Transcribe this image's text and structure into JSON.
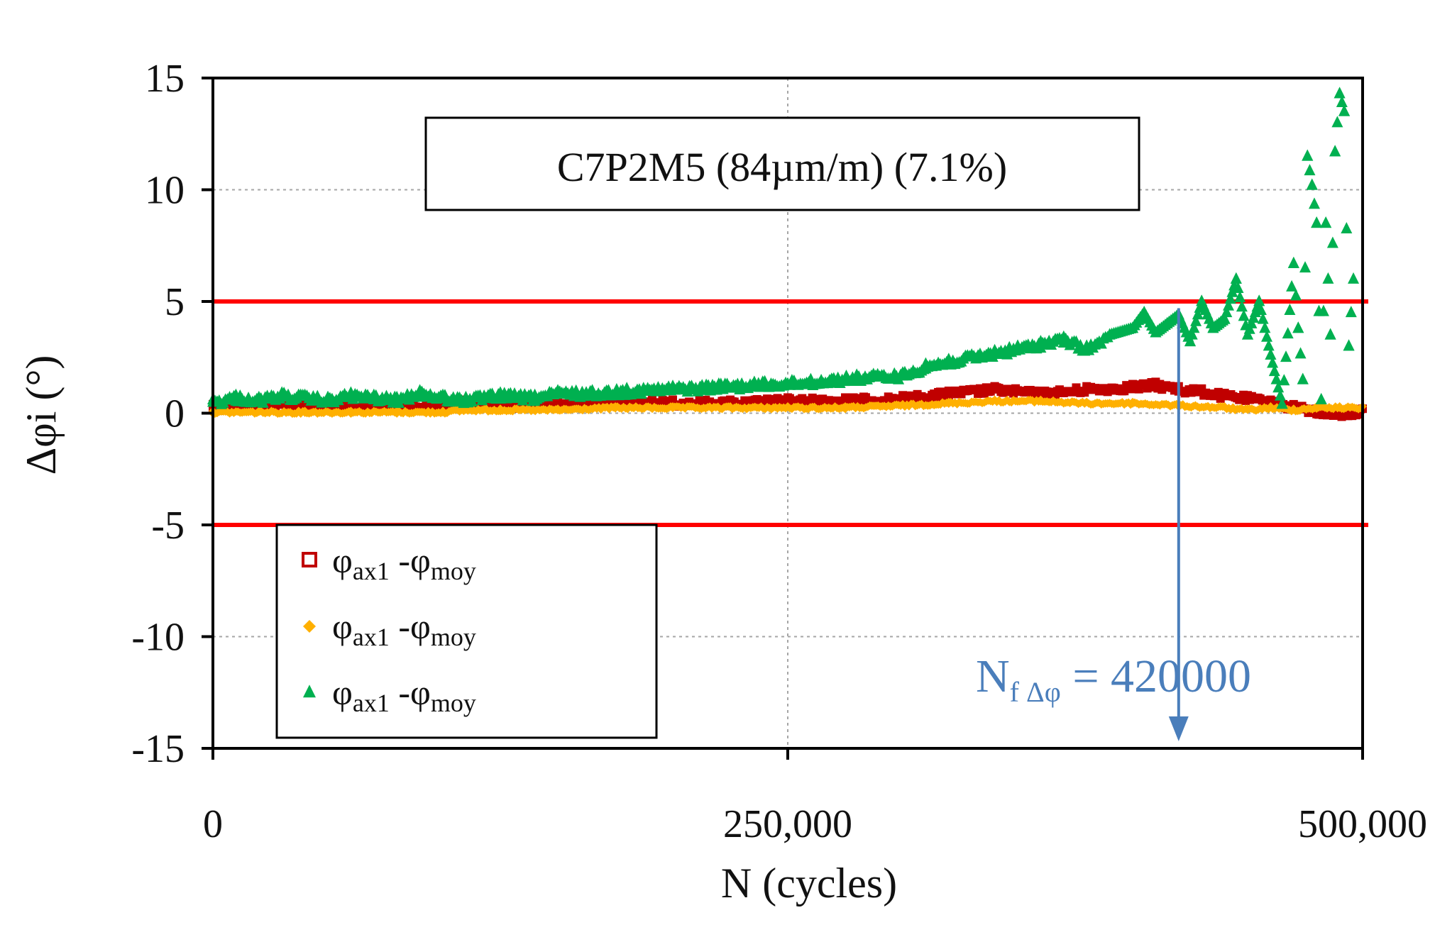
{
  "chart_data": {
    "type": "scatter",
    "title": "C7P2M5  (84µm/m) (7.1%)",
    "xlabel": "N (cycles)",
    "ylabel": "Δφi (°)",
    "xlim": [
      0,
      500000
    ],
    "ylim": [
      -15,
      15
    ],
    "x_ticks": [
      "0",
      "250,000",
      "500,000"
    ],
    "x_tick_values": [
      0,
      250000,
      500000
    ],
    "y_ticks": [
      "15",
      "10",
      "5",
      "0",
      "-5",
      "-10",
      "-15"
    ],
    "y_tick_values": [
      15,
      10,
      5,
      0,
      -5,
      -10,
      -15
    ],
    "grid": true,
    "thresholds": [
      {
        "value": 5,
        "color": "#ff0000"
      },
      {
        "value": -5,
        "color": "#ff0000"
      }
    ],
    "annotation": {
      "label_main": "N",
      "label_sub": "f Δφ",
      "label_value": " = 420000",
      "x": 420000,
      "color": "#4a7ebb"
    },
    "legend_position": "bottom-left",
    "series": [
      {
        "name": "φax1 -φmoy",
        "legend_main": "φ",
        "legend_sub1": "ax1",
        "legend_mid": " -φ",
        "legend_sub2": "moy",
        "marker": "square",
        "color": "#c00000",
        "x": [
          0,
          20000,
          40000,
          60000,
          80000,
          100000,
          110000,
          125000,
          150000,
          175000,
          200000,
          225000,
          250000,
          275000,
          300000,
          320000,
          340000,
          360000,
          380000,
          400000,
          410000,
          420000,
          430000,
          440000,
          450000,
          460000,
          470000,
          480000,
          490000,
          500000
        ],
        "y": [
          0.4,
          0.5,
          0.5,
          0.4,
          0.5,
          0.4,
          0.6,
          0.5,
          0.5,
          0.6,
          0.6,
          0.6,
          0.7,
          0.7,
          0.8,
          1.0,
          1.2,
          1.0,
          1.2,
          1.3,
          1.4,
          1.2,
          1.1,
          0.9,
          0.8,
          0.6,
          0.4,
          0.2,
          0.1,
          0.2
        ]
      },
      {
        "name": "φax1 -φmoy",
        "legend_main": "φ",
        "legend_sub1": "ax1",
        "legend_mid": " -φ",
        "legend_sub2": "moy",
        "marker": "diamond",
        "color": "#ffb000",
        "x": [
          0,
          20000,
          40000,
          60000,
          80000,
          100000,
          110000,
          125000,
          150000,
          175000,
          200000,
          225000,
          250000,
          275000,
          300000,
          320000,
          340000,
          360000,
          380000,
          400000,
          420000,
          440000,
          450000,
          460000,
          470000,
          480000,
          490000,
          500000
        ],
        "y": [
          0.1,
          0.1,
          0.1,
          0.1,
          0.1,
          0.1,
          0.2,
          0.2,
          0.2,
          0.3,
          0.3,
          0.3,
          0.3,
          0.3,
          0.4,
          0.5,
          0.6,
          0.6,
          0.5,
          0.5,
          0.4,
          0.3,
          0.2,
          0.3,
          0.2,
          0.3,
          0.3,
          0.3
        ]
      },
      {
        "name": "φax1 -φmoy",
        "legend_main": "φ",
        "legend_sub1": "ax1",
        "legend_mid": " -φ",
        "legend_sub2": "moy",
        "marker": "triangle",
        "color": "#00b050",
        "x": [
          0,
          10000,
          20000,
          30000,
          40000,
          50000,
          60000,
          70000,
          80000,
          90000,
          100000,
          110000,
          125000,
          140000,
          150000,
          165000,
          180000,
          200000,
          220000,
          240000,
          260000,
          280000,
          300000,
          310000,
          320000,
          330000,
          340000,
          350000,
          360000,
          370000,
          380000,
          390000,
          400000,
          405000,
          410000,
          415000,
          420000,
          425000,
          430000,
          435000,
          440000,
          445000,
          450000,
          455000,
          460000,
          465000,
          470000,
          472000,
          474000,
          476000,
          478000,
          480000,
          482000,
          484000,
          486000,
          488000,
          490000,
          492000,
          494000,
          496000
        ],
        "y": [
          0.6,
          0.8,
          0.7,
          0.9,
          0.8,
          0.7,
          0.9,
          0.8,
          0.7,
          1.0,
          0.8,
          0.7,
          0.9,
          0.8,
          1.0,
          1.0,
          1.1,
          1.2,
          1.3,
          1.4,
          1.5,
          1.7,
          1.8,
          2.2,
          2.4,
          2.6,
          2.8,
          3.0,
          3.2,
          3.4,
          3.0,
          3.5,
          3.8,
          4.5,
          3.6,
          4.0,
          4.4,
          3.2,
          5.0,
          3.8,
          4.2,
          6.0,
          3.5,
          5.0,
          2.6,
          0.4,
          6.7,
          3.8,
          1.5,
          11.5,
          10.2,
          8.5,
          0.6,
          8.5,
          3.5,
          11.7,
          14.3,
          13.5,
          3.0,
          6.0
        ]
      }
    ]
  }
}
